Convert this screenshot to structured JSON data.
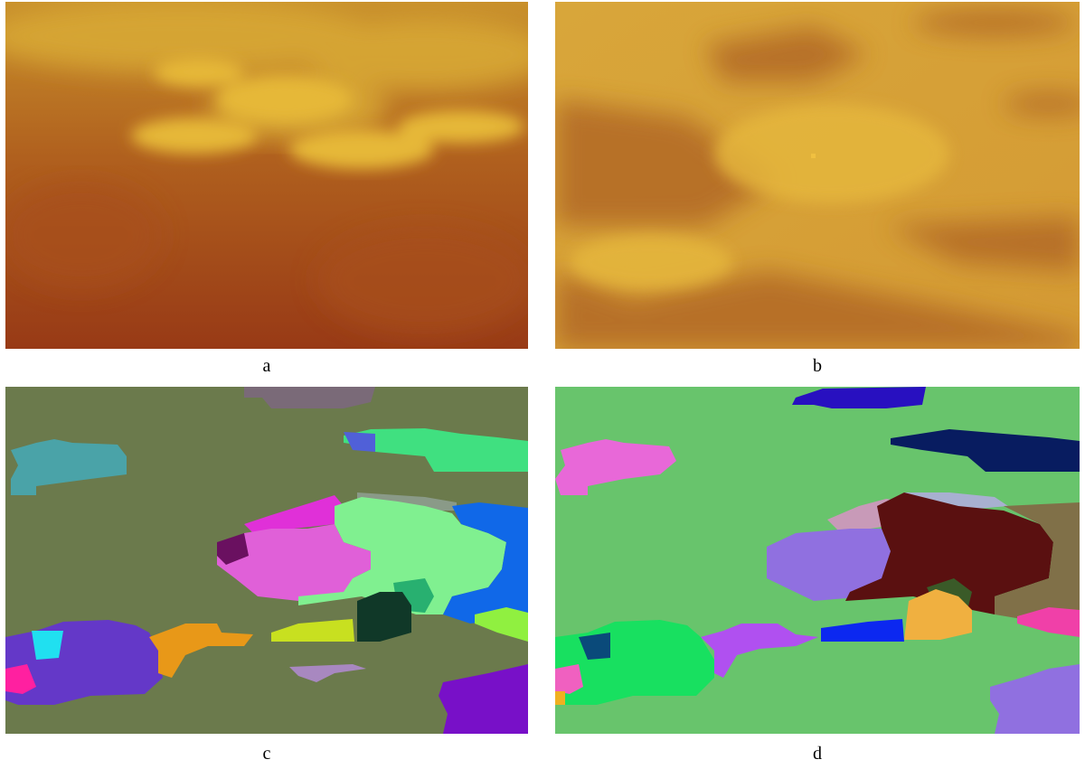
{
  "panels": [
    {
      "caption": "a"
    },
    {
      "caption": "b"
    },
    {
      "caption": "c"
    },
    {
      "caption": "d"
    }
  ]
}
